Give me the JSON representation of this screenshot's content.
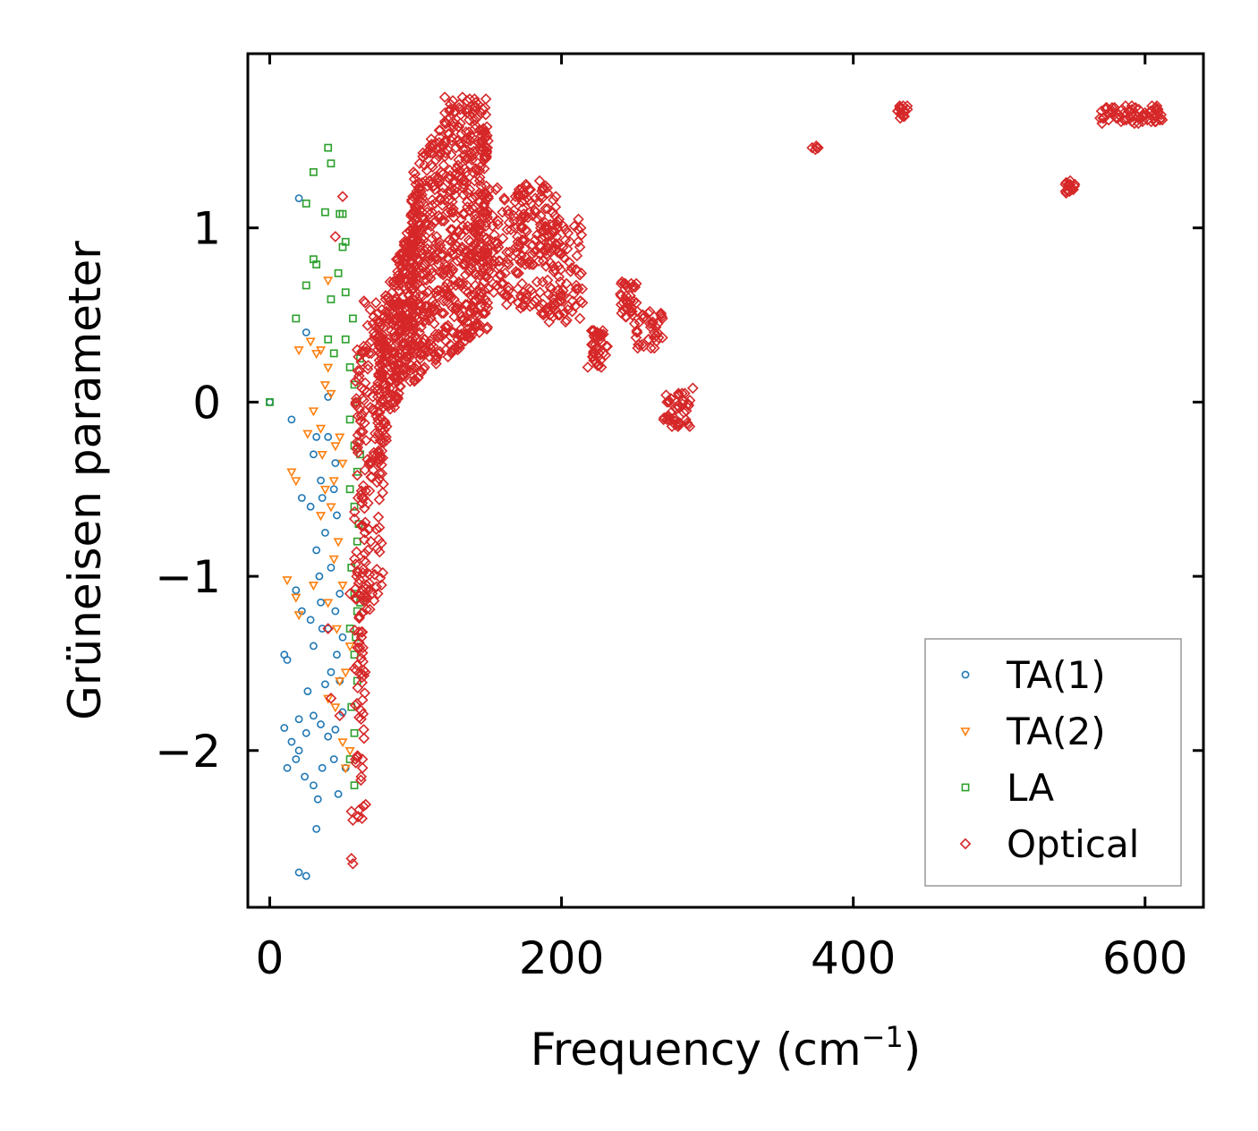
{
  "chart_data": {
    "type": "scatter",
    "title": "",
    "xlabel": "Frequency (cm",
    "xlabel_sup": "−1",
    "xlabel_end": ")",
    "ylabel": "Grüneisen parameter",
    "xlim": [
      -15,
      640
    ],
    "ylim": [
      -2.9,
      2.0
    ],
    "xticks": [
      0,
      200,
      400,
      600
    ],
    "xtick_labels": [
      "0",
      "200",
      "400",
      "600"
    ],
    "yticks": [
      -2,
      -1,
      0,
      1
    ],
    "ytick_labels": [
      "−2",
      "−1",
      "0",
      "1"
    ],
    "grid": false,
    "legend_position": "lower-right",
    "series": [
      {
        "name": "TA(1)",
        "marker": "circle",
        "color": "#1f77b4",
        "points": [
          [
            0,
            0
          ],
          [
            15,
            -0.1
          ],
          [
            20,
            1.17
          ],
          [
            22,
            -0.55
          ],
          [
            25,
            0.4
          ],
          [
            30,
            -0.3
          ],
          [
            35,
            -0.45
          ],
          [
            32,
            -0.2
          ],
          [
            40,
            0.03
          ],
          [
            45,
            -0.35
          ],
          [
            10,
            -1.45
          ],
          [
            12,
            -1.48
          ],
          [
            18,
            -1.08
          ],
          [
            22,
            -1.2
          ],
          [
            28,
            -1.25
          ],
          [
            35,
            -1.15
          ],
          [
            40,
            -1.3
          ],
          [
            45,
            -1.2
          ],
          [
            48,
            -1.1
          ],
          [
            50,
            -1.35
          ],
          [
            32,
            -0.85
          ],
          [
            38,
            -0.75
          ],
          [
            42,
            -0.95
          ],
          [
            46,
            -0.65
          ],
          [
            36,
            -0.55
          ],
          [
            10,
            -1.87
          ],
          [
            15,
            -1.95
          ],
          [
            20,
            -1.82
          ],
          [
            25,
            -1.9
          ],
          [
            30,
            -1.8
          ],
          [
            35,
            -1.85
          ],
          [
            40,
            -1.92
          ],
          [
            45,
            -1.88
          ],
          [
            50,
            -1.78
          ],
          [
            12,
            -2.1
          ],
          [
            18,
            -2.05
          ],
          [
            24,
            -2.15
          ],
          [
            30,
            -2.2
          ],
          [
            36,
            -2.1
          ],
          [
            44,
            -2.05
          ],
          [
            32,
            -2.45
          ],
          [
            20,
            -2.7
          ],
          [
            25,
            -2.72
          ],
          [
            38,
            -1.62
          ],
          [
            42,
            -1.55
          ],
          [
            30,
            -1.4
          ],
          [
            48,
            -1.6
          ],
          [
            26,
            -1.66
          ],
          [
            34,
            -1.0
          ],
          [
            44,
            -0.5
          ],
          [
            40,
            -0.2
          ],
          [
            28,
            -0.6
          ],
          [
            47,
            -2.25
          ],
          [
            33,
            -2.28
          ],
          [
            20,
            -2.0
          ],
          [
            52,
            -2.1
          ],
          [
            46,
            -1.45
          ],
          [
            36,
            -1.3
          ]
        ]
      },
      {
        "name": "TA(2)",
        "marker": "triangle",
        "color": "#ff7f0e",
        "points": [
          [
            40,
            0.7
          ],
          [
            35,
            0.3
          ],
          [
            40,
            0.2
          ],
          [
            38,
            0.1
          ],
          [
            42,
            0.05
          ],
          [
            30,
            -0.05
          ],
          [
            35,
            -0.15
          ],
          [
            45,
            -0.25
          ],
          [
            50,
            -0.35
          ],
          [
            38,
            -0.5
          ],
          [
            42,
            -0.6
          ],
          [
            48,
            -0.2
          ],
          [
            15,
            -0.4
          ],
          [
            18,
            -0.45
          ],
          [
            35,
            -0.65
          ],
          [
            12,
            -1.02
          ],
          [
            18,
            -1.12
          ],
          [
            20,
            -1.22
          ],
          [
            30,
            -1.05
          ],
          [
            40,
            -1.15
          ],
          [
            46,
            -1.3
          ],
          [
            50,
            -1.05
          ],
          [
            44,
            -0.9
          ],
          [
            40,
            -1.7
          ],
          [
            45,
            -1.75
          ],
          [
            48,
            -1.6
          ],
          [
            52,
            -1.55
          ],
          [
            55,
            -2.0
          ],
          [
            52,
            -2.1
          ],
          [
            50,
            -1.95
          ],
          [
            55,
            -1.4
          ],
          [
            32,
            0.28
          ],
          [
            28,
            0.35
          ],
          [
            26,
            -0.18
          ],
          [
            44,
            -0.45
          ],
          [
            47,
            -0.8
          ],
          [
            20,
            0.3
          ],
          [
            36,
            -0.3
          ]
        ]
      },
      {
        "name": "LA",
        "marker": "square",
        "color": "#2ca02c",
        "points": [
          [
            0,
            0
          ],
          [
            30,
            1.32
          ],
          [
            40,
            1.46
          ],
          [
            42,
            1.37
          ],
          [
            25,
            1.14
          ],
          [
            38,
            1.09
          ],
          [
            48,
            1.08
          ],
          [
            50,
            1.08
          ],
          [
            52,
            0.92
          ],
          [
            50,
            0.89
          ],
          [
            30,
            0.82
          ],
          [
            32,
            0.79
          ],
          [
            47,
            0.74
          ],
          [
            25,
            0.67
          ],
          [
            52,
            0.63
          ],
          [
            42,
            0.59
          ],
          [
            18,
            0.48
          ],
          [
            57,
            0.48
          ],
          [
            52,
            0.36
          ],
          [
            44,
            0.28
          ],
          [
            40,
            0.36
          ],
          [
            55,
            0.2
          ],
          [
            58,
            0.1
          ],
          [
            60,
            0.0
          ],
          [
            55,
            -0.1
          ],
          [
            58,
            -0.25
          ],
          [
            60,
            -0.4
          ],
          [
            55,
            -0.5
          ],
          [
            58,
            -0.6
          ],
          [
            60,
            -0.8
          ],
          [
            56,
            -0.95
          ],
          [
            58,
            -1.1
          ],
          [
            60,
            -1.2
          ],
          [
            55,
            -1.3
          ],
          [
            58,
            -1.45
          ],
          [
            60,
            -1.6
          ],
          [
            56,
            -1.75
          ],
          [
            58,
            -1.9
          ],
          [
            55,
            -2.05
          ],
          [
            58,
            -2.2
          ],
          [
            62,
            0.25
          ],
          [
            62,
            -0.3
          ],
          [
            61,
            -0.7
          ],
          [
            62,
            -1.15
          ],
          [
            59,
            -1.35
          ]
        ]
      },
      {
        "name": "Optical",
        "marker": "diamond",
        "color": "#d62728",
        "points": []
      }
    ]
  },
  "legend": {
    "items": [
      {
        "label": "TA(1)"
      },
      {
        "label": "TA(2)"
      },
      {
        "label": "LA"
      },
      {
        "label": "Optical"
      }
    ]
  }
}
